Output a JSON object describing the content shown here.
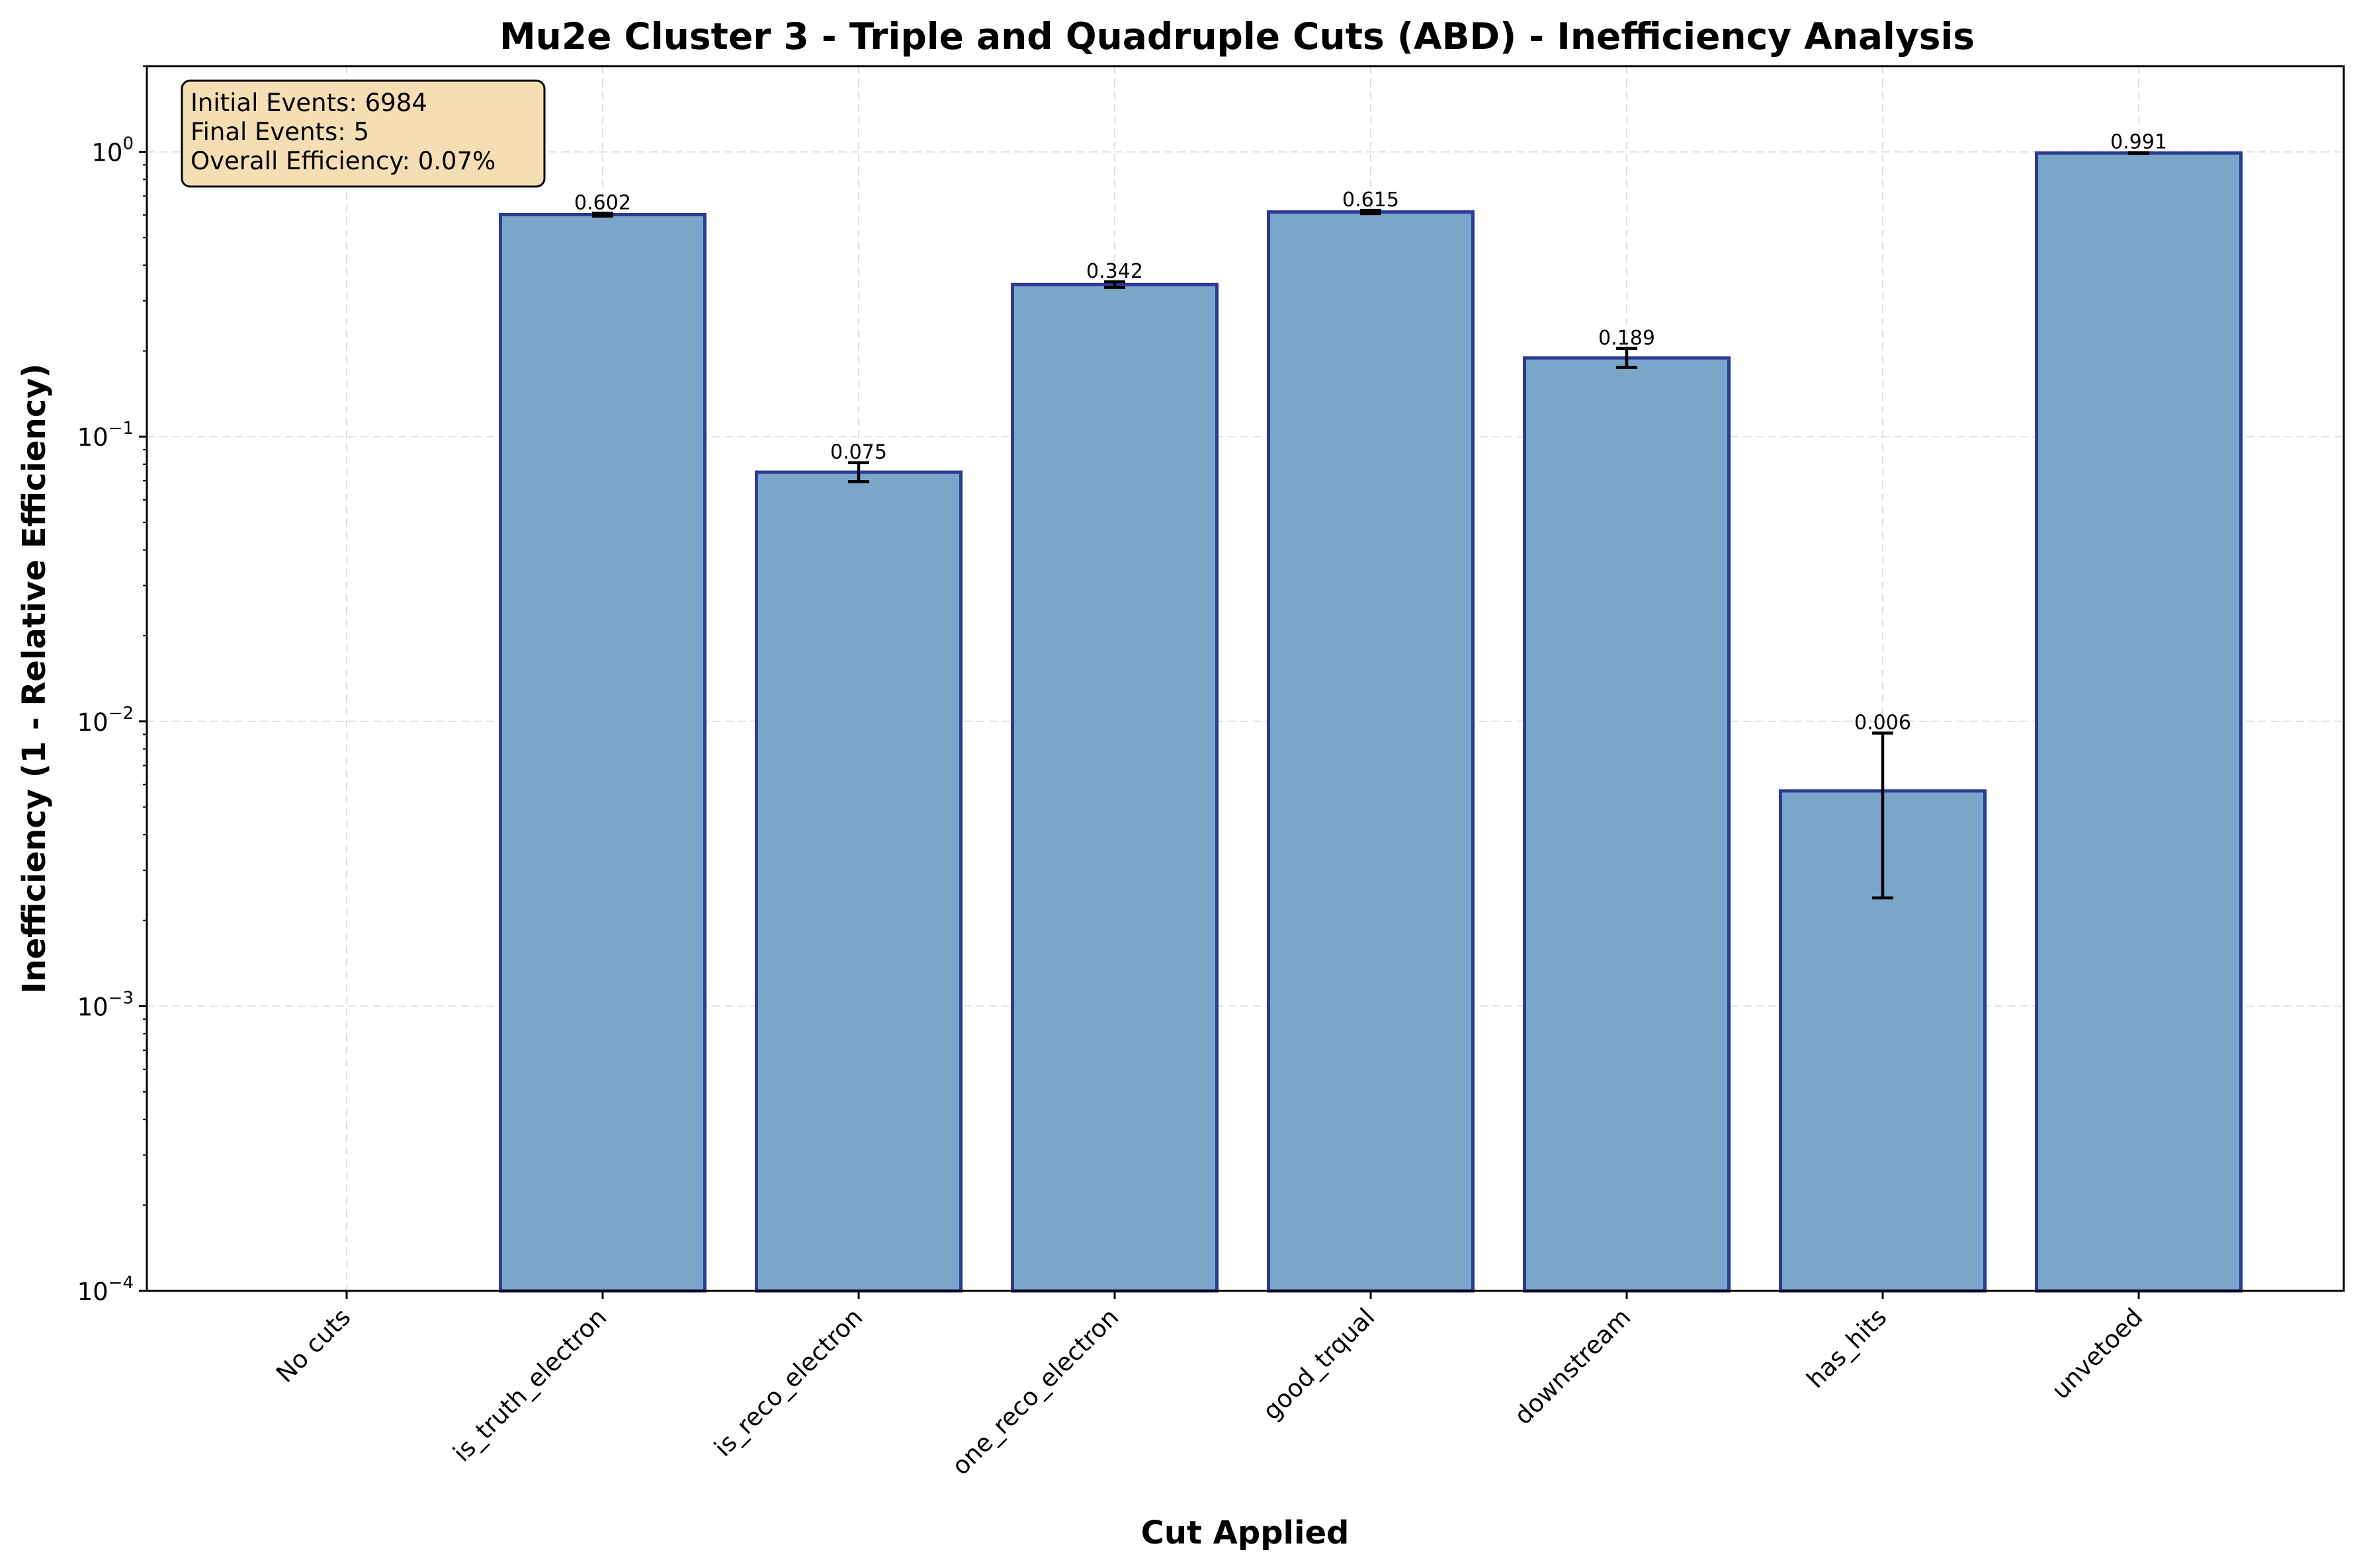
{
  "chart_data": {
    "type": "bar",
    "title": "Mu2e Cluster 3 - Triple and Quadruple Cuts (ABD) - Inefficiency Analysis",
    "xlabel": "Cut Applied",
    "ylabel": "Inefficiency (1 - Relative Efficiency)",
    "yscale": "log",
    "ylim": [
      0.0001,
      2
    ],
    "yticks": [
      {
        "value": 0.0001,
        "base": "10",
        "exp": "−4"
      },
      {
        "value": 0.001,
        "base": "10",
        "exp": "−3"
      },
      {
        "value": 0.01,
        "base": "10",
        "exp": "−2"
      },
      {
        "value": 0.1,
        "base": "10",
        "exp": "−1"
      },
      {
        "value": 1,
        "base": "10",
        "exp": "0"
      }
    ],
    "categories": [
      "No cuts",
      "is_truth_electron",
      "is_reco_electron",
      "one_reco_electron",
      "good_trqual",
      "downstream",
      "has_hits",
      "unvetoed"
    ],
    "values": [
      0,
      0.602,
      0.075,
      0.342,
      0.615,
      0.189,
      0.0057,
      0.991
    ],
    "value_labels": [
      "",
      "0.602",
      "0.075",
      "0.342",
      "0.615",
      "0.189",
      "0.006",
      "0.991"
    ],
    "error_low": [
      0,
      0.595,
      0.0695,
      0.334,
      0.607,
      0.175,
      0.0024,
      0.988
    ],
    "error_high": [
      0,
      0.609,
      0.081,
      0.35,
      0.623,
      0.204,
      0.0091,
      0.994
    ],
    "grid": true,
    "bar_color": "#7ba6ca",
    "bar_edge_color": "#2e3a93",
    "stats_box": {
      "lines": [
        "Initial Events: 6984",
        "Final Events: 5",
        "Overall Efficiency: 0.07%"
      ],
      "background": "#f5deb3",
      "placement": "top-left"
    }
  }
}
